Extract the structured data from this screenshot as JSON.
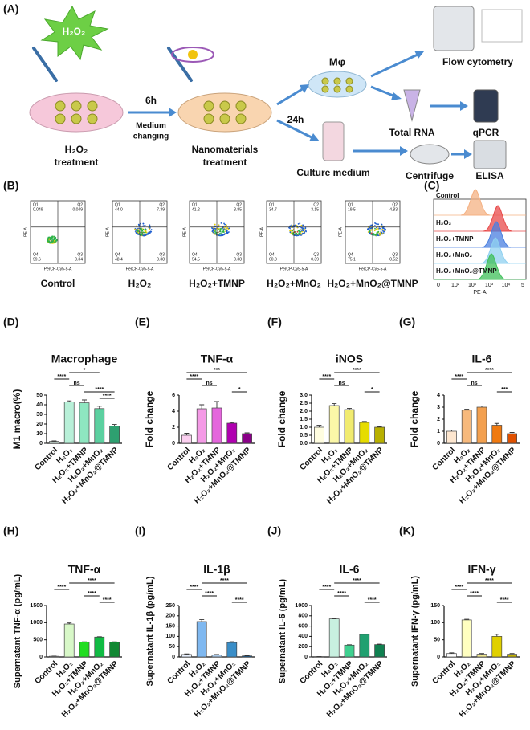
{
  "panel_labels": [
    "(A)",
    "(B)",
    "(C)",
    "(D)",
    "(E)",
    "(F)",
    "(G)",
    "(H)",
    "(I)",
    "(J)",
    "(K)"
  ],
  "schematic": {
    "reagent": "H₂O₂",
    "time_1": "6h",
    "step_1": [
      "Medium",
      "changing"
    ],
    "dish_1": [
      "H₂O₂",
      "treatment"
    ],
    "dish_2": [
      "Nanomaterials",
      "treatment"
    ],
    "time_2": "24h",
    "cells": "Mφ",
    "medium": "Culture medium",
    "flow": "Flow cytometry",
    "rna": "Total RNA",
    "qpcr": "qPCR",
    "centrifuge": "Centrifuge",
    "elisa": "ELISA"
  },
  "flow": {
    "x_label": "PerCP-Cy5-5-A",
    "y_label": "PE-A",
    "quadrant_names": [
      "Q1",
      "Q2",
      "Q3",
      "Q4"
    ],
    "plots": [
      {
        "name": "Control",
        "quadrants": [
          "0.049",
          "0.049",
          "0.34",
          "99.6"
        ]
      },
      {
        "name": "H₂O₂",
        "quadrants": [
          "44.0",
          "7.39",
          "0.38",
          "48.4"
        ]
      },
      {
        "name": "H₂O₂+TMNP",
        "quadrants": [
          "41.2",
          "3.85",
          "0.38",
          "54.5"
        ]
      },
      {
        "name": "H₂O₂+MnO₂",
        "quadrants": [
          "34.7",
          "3.15",
          "0.39",
          "60.8"
        ]
      },
      {
        "name": "H₂O₂+MnO₂@TMNP",
        "quadrants": [
          "19.5",
          "4.83",
          "0.52",
          "75.1"
        ]
      }
    ]
  },
  "histogram": {
    "x_label": "PE-A",
    "series": [
      "Control",
      "H₂O₂",
      "H₂O₂+TMNP",
      "H₂O₂+MnO₂",
      "H₂O₂+MnO₂@TMNP"
    ],
    "xticks": [
      "0",
      "10¹",
      "10²",
      "10³",
      "10⁴",
      "5"
    ]
  },
  "chart_data": [
    {
      "type": "bar",
      "title": "Macrophage",
      "ylabel": "M1 macro(%)",
      "categories": [
        "Control",
        "H₂O₂",
        "H₂O₂+TMNP",
        "H₂O₂+MnO₂",
        "H₂O₂+MnO₂@TMNP"
      ],
      "values": [
        2,
        43,
        42,
        36,
        18
      ],
      "errors": [
        0.5,
        1,
        3,
        2.5,
        1.5
      ],
      "colors": [
        "#e0f7ec",
        "#b8f0d8",
        "#8ee6c0",
        "#5cd0a0",
        "#2ea070"
      ],
      "ylim": [
        0,
        50
      ],
      "yticks": [
        0,
        10,
        20,
        30,
        40,
        50
      ],
      "brackets": [
        {
          "from": 1,
          "to": 3,
          "label": "*"
        },
        {
          "from": 0,
          "to": 1,
          "label": "****"
        },
        {
          "from": 1,
          "to": 2,
          "label": "ns"
        },
        {
          "from": 2,
          "to": 4,
          "label": "****"
        },
        {
          "from": 3,
          "to": 4,
          "label": "****"
        }
      ]
    },
    {
      "type": "bar",
      "title": "TNF-α",
      "ylabel": "Fold change",
      "categories": [
        "Control",
        "H₂O₂",
        "H₂O₂+TMNP",
        "H₂O₂+MnO₂",
        "H₂O₂+MnO₂@TMNP"
      ],
      "values": [
        1.0,
        4.3,
        4.4,
        2.5,
        1.2
      ],
      "errors": [
        0.25,
        0.5,
        0.8,
        0.1,
        0.1
      ],
      "colors": [
        "#fbd0f0",
        "#f49ae6",
        "#e466dc",
        "#b000b0",
        "#8a0088"
      ],
      "ylim": [
        0,
        6
      ],
      "yticks": [
        0,
        2,
        4,
        6
      ],
      "brackets": [
        {
          "from": 0,
          "to": 4,
          "label": "***"
        },
        {
          "from": 0,
          "to": 1,
          "label": "****"
        },
        {
          "from": 1,
          "to": 2,
          "label": "ns"
        },
        {
          "from": 3,
          "to": 4,
          "label": "*"
        }
      ]
    },
    {
      "type": "bar",
      "title": "iNOS",
      "ylabel": "Fold change",
      "categories": [
        "Control",
        "H₂O₂",
        "H₂O₂+TMNP",
        "H₂O₂+MnO₂",
        "H₂O₂+MnO₂@TMNP"
      ],
      "values": [
        1.0,
        2.35,
        2.1,
        1.3,
        1.0
      ],
      "errors": [
        0.12,
        0.12,
        0.08,
        0.06,
        0.03
      ],
      "colors": [
        "#fffde0",
        "#fbf7a8",
        "#f1eb70",
        "#e6dc00",
        "#b8b000"
      ],
      "ylim": [
        0,
        3
      ],
      "yticks": [
        {
          "value": 0,
          "label": "0.0"
        },
        {
          "value": 0.5,
          "label": "0.5"
        },
        {
          "value": 1,
          "label": "1.0"
        },
        {
          "value": 1.5,
          "label": "1.5"
        },
        {
          "value": 2,
          "label": "2.0"
        },
        {
          "value": 2.5,
          "label": "2.5"
        },
        {
          "value": 3,
          "label": "3.0"
        }
      ],
      "brackets": [
        {
          "from": 1,
          "to": 4,
          "label": "****"
        },
        {
          "from": 0,
          "to": 1,
          "label": "****"
        },
        {
          "from": 1,
          "to": 2,
          "label": "ns"
        },
        {
          "from": 3,
          "to": 4,
          "label": "*"
        }
      ]
    },
    {
      "type": "bar",
      "title": "IL-6",
      "ylabel": "Fold change",
      "categories": [
        "Control",
        "H₂O₂",
        "H₂O₂+TMNP",
        "H₂O₂+MnO₂",
        "H₂O₂+MnO₂@TMNP"
      ],
      "values": [
        1.0,
        2.75,
        3.0,
        1.5,
        0.8
      ],
      "errors": [
        0.1,
        0.08,
        0.1,
        0.15,
        0.1
      ],
      "colors": [
        "#fde6cf",
        "#f7b97c",
        "#f3a04f",
        "#f07a10",
        "#e05000"
      ],
      "ylim": [
        0,
        4
      ],
      "yticks": [
        0,
        1,
        2,
        3,
        4
      ],
      "brackets": [
        {
          "from": 1,
          "to": 4,
          "label": "****"
        },
        {
          "from": 0,
          "to": 1,
          "label": "****"
        },
        {
          "from": 1,
          "to": 2,
          "label": "ns"
        },
        {
          "from": 3,
          "to": 4,
          "label": "***"
        }
      ]
    },
    {
      "type": "bar",
      "title": "TNF-α",
      "ylabel": "Supernatant TNF-α (pg/mL)",
      "categories": [
        "Control",
        "H₂O₂",
        "H₂O₂+TMNP",
        "H₂O₂+MnO₂",
        "H₂O₂+MnO₂@TMNP"
      ],
      "values": [
        20,
        960,
        430,
        580,
        430
      ],
      "errors": [
        5,
        30,
        10,
        10,
        10
      ],
      "colors": [
        "#ffffff",
        "#d8f8c8",
        "#22dd22",
        "#11bb44",
        "#118833"
      ],
      "ylim": [
        0,
        1500
      ],
      "yticks": [
        0,
        500,
        1000,
        1500
      ],
      "brackets": [
        {
          "from": 1,
          "to": 4,
          "label": "****"
        },
        {
          "from": 0,
          "to": 1,
          "label": "****"
        },
        {
          "from": 2,
          "to": 3,
          "label": "****"
        },
        {
          "from": 3,
          "to": 4,
          "label": "****"
        }
      ]
    },
    {
      "type": "bar",
      "title": "IL-1β",
      "ylabel": "Supernatant IL-1β (pg/mL)",
      "categories": [
        "Control",
        "H₂O₂",
        "H₂O₂+TMNP",
        "H₂O₂+MnO₂",
        "H₂O₂+MnO₂@TMNP"
      ],
      "values": [
        12,
        172,
        10,
        70,
        5
      ],
      "errors": [
        3,
        10,
        2,
        4,
        1
      ],
      "colors": [
        "#e8f0ff",
        "#7fb8f0",
        "#a9c8e8",
        "#3a8ec8",
        "#1060a0"
      ],
      "ylim": [
        0,
        250
      ],
      "yticks": [
        0,
        50,
        100,
        150,
        200,
        250
      ],
      "brackets": [
        {
          "from": 1,
          "to": 4,
          "label": "****"
        },
        {
          "from": 0,
          "to": 1,
          "label": "****"
        },
        {
          "from": 1,
          "to": 2,
          "label": "****"
        },
        {
          "from": 3,
          "to": 4,
          "label": "****"
        }
      ]
    },
    {
      "type": "bar",
      "title": "IL-6",
      "ylabel": "Supernatant IL-6 (pg/mL)",
      "categories": [
        "Control",
        "H₂O₂",
        "H₂O₂+TMNP",
        "H₂O₂+MnO₂",
        "H₂O₂+MnO₂@TMNP"
      ],
      "values": [
        5,
        740,
        230,
        440,
        240
      ],
      "errors": [
        1,
        8,
        8,
        6,
        8
      ],
      "colors": [
        "#ffffff",
        "#c8f0e0",
        "#40d090",
        "#20a070",
        "#108050"
      ],
      "ylim": [
        0,
        1000
      ],
      "yticks": [
        0,
        200,
        400,
        600,
        800,
        1000
      ],
      "brackets": [
        {
          "from": 1,
          "to": 4,
          "label": "****"
        },
        {
          "from": 0,
          "to": 1,
          "label": "****"
        },
        {
          "from": 1,
          "to": 2,
          "label": "****"
        },
        {
          "from": 3,
          "to": 4,
          "label": "****"
        }
      ]
    },
    {
      "type": "bar",
      "title": "IFN-γ",
      "ylabel": "Supernatant IFN-γ (pg/mL)",
      "categories": [
        "Control",
        "H₂O₂",
        "H₂O₂+TMNP",
        "H₂O₂+MnO₂",
        "H₂O₂+MnO₂@TMNP"
      ],
      "values": [
        10,
        108,
        8,
        60,
        8
      ],
      "errors": [
        2,
        2,
        2,
        6,
        2
      ],
      "colors": [
        "#ffffff",
        "#ffffc0",
        "#f0e890",
        "#e0d000",
        "#c0b000"
      ],
      "ylim": [
        0,
        150
      ],
      "yticks": [
        0,
        50,
        100,
        150
      ],
      "brackets": [
        {
          "from": 1,
          "to": 4,
          "label": "****"
        },
        {
          "from": 0,
          "to": 1,
          "label": "****"
        },
        {
          "from": 1,
          "to": 2,
          "label": "****"
        },
        {
          "from": 3,
          "to": 4,
          "label": "****"
        }
      ]
    }
  ]
}
